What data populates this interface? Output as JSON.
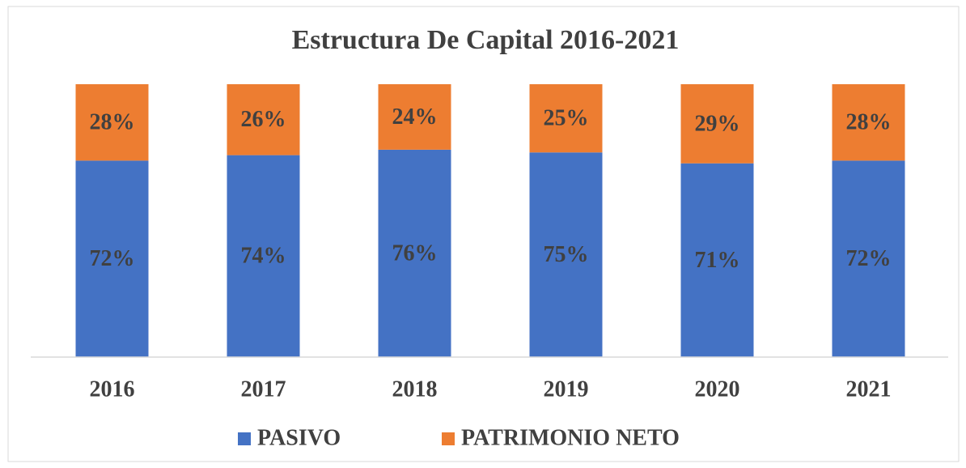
{
  "chart_data": {
    "type": "stacked_bar",
    "title": "Estructura De Capital 2016-2021",
    "categories": [
      "2016",
      "2017",
      "2018",
      "2019",
      "2020",
      "2021"
    ],
    "series": [
      {
        "name": "PASIVO",
        "color": "#4472c4",
        "values": [
          72,
          74,
          76,
          75,
          71,
          72
        ],
        "value_labels": [
          "72%",
          "74%",
          "76%",
          "75%",
          "71%",
          "72%"
        ]
      },
      {
        "name": "PATRIMONIO NETO",
        "color": "#ed7d31",
        "values": [
          28,
          26,
          24,
          25,
          29,
          28
        ],
        "value_labels": [
          "28%",
          "26%",
          "24%",
          "25%",
          "29%",
          "28%"
        ]
      }
    ],
    "legend": "bottom"
  }
}
